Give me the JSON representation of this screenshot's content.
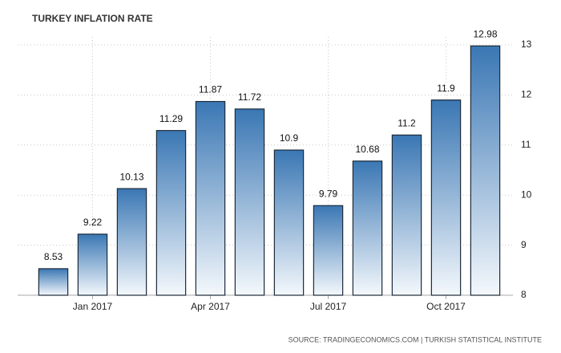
{
  "chart_data": {
    "type": "bar",
    "title": "TURKEY INFLATION RATE",
    "source": "SOURCE: TRADINGECONOMICS.COM | TURKISH STATISTICAL INSTITUTE",
    "categories": [
      null,
      "Jan 2017",
      null,
      null,
      "Apr 2017",
      null,
      null,
      "Jul 2017",
      null,
      null,
      "Oct 2017",
      null
    ],
    "values": [
      8.53,
      9.22,
      10.13,
      11.29,
      11.87,
      11.72,
      10.9,
      9.79,
      10.68,
      11.2,
      11.9,
      12.98
    ],
    "color": "#3a77b4",
    "ylim": [
      8,
      13
    ],
    "yticks": [
      8,
      9,
      10,
      11,
      12,
      13
    ],
    "grid": true,
    "y_axis_side": "right"
  }
}
